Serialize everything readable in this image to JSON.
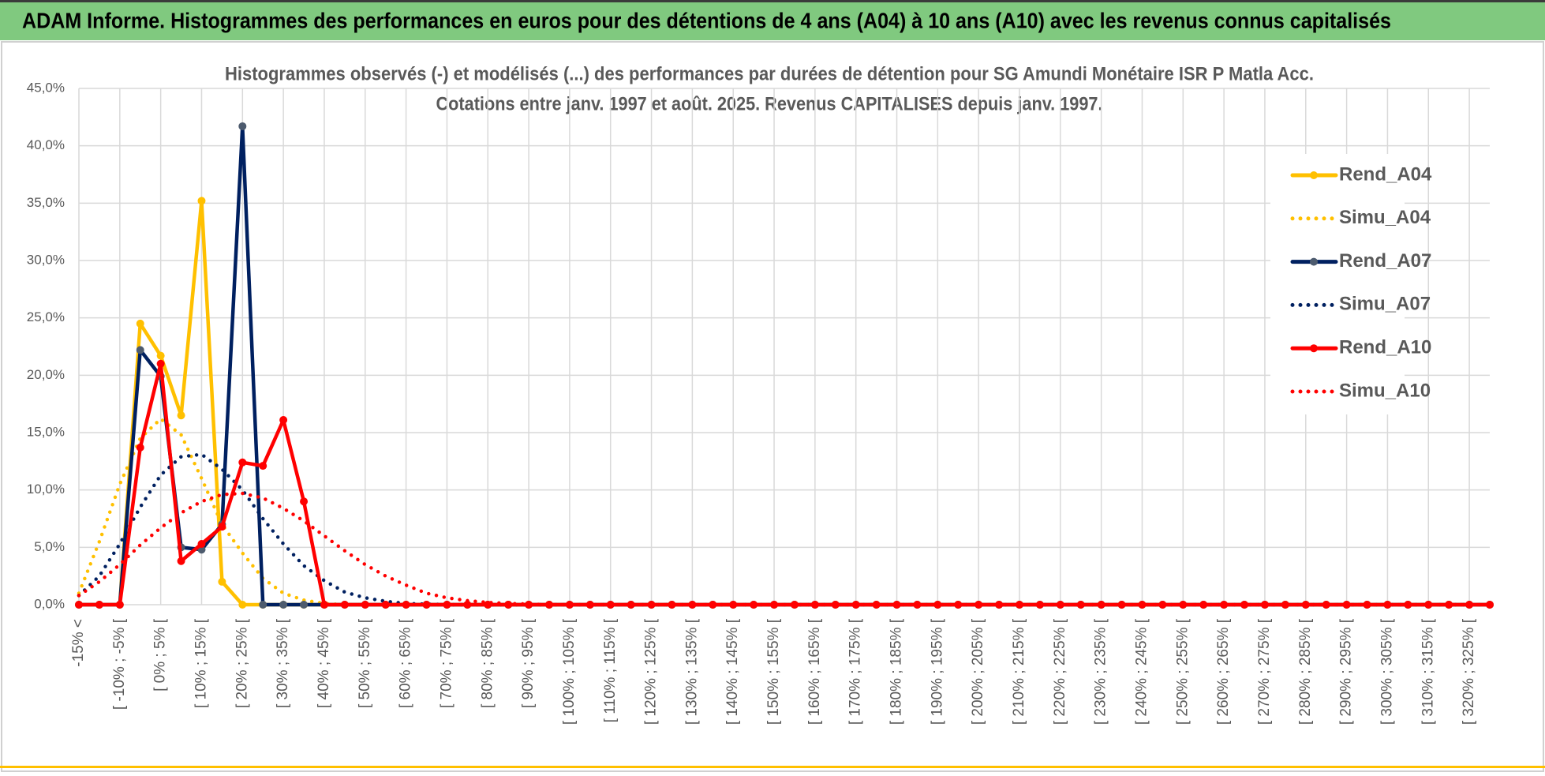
{
  "header": {
    "title": "ADAM Informe. Histogrammes des performances en euros pour des détentions de 4 ans (A04) à 10 ans (A10) avec les revenus connus capitalisés"
  },
  "chart_data": {
    "type": "line",
    "title": "Histogrammes observés (-) et modélisés (...) des performances par durées de détention pour SG Amundi Monétaire ISR P Matla Acc.",
    "subtitle": "Cotations entre janv. 1997 et août. 2025. Revenus CAPITALISES depuis janv. 1997.",
    "categories": [
      "-15% <",
      null,
      "[ -10% ; -5% [",
      null,
      "[ 0% ; 5% [",
      null,
      "[ 10% ; 15% [",
      null,
      "[ 20% ; 25% [",
      null,
      "[ 30% ; 35% [",
      null,
      "[ 40% ; 45% [",
      null,
      "[ 50% ; 55% [",
      null,
      "[ 60% ; 65% [",
      null,
      "[ 70% ; 75% [",
      null,
      "[ 80% ; 85% [",
      null,
      "[ 90% ; 95% [",
      null,
      "[ 100% ; 105% [",
      null,
      "[ 110% ; 115% [",
      null,
      "[ 120% ; 125% [",
      null,
      "[ 130% ; 135% [",
      null,
      "[ 140% ; 145% [",
      null,
      "[ 150% ; 155% [",
      null,
      "[ 160% ; 165% [",
      null,
      "[ 170% ; 175% [",
      null,
      "[ 180% ; 185% [",
      null,
      "[ 190% ; 195% [",
      null,
      "[ 200% ; 205% [",
      null,
      "[ 210% ; 215% [",
      null,
      "[ 220% ; 225% [",
      null,
      "[ 230% ; 235% [",
      null,
      "[ 240% ; 245% [",
      null,
      "[ 250% ; 255% [",
      null,
      "[ 260% ; 265% [",
      null,
      "[ 270% ; 275% [",
      null,
      "[ 280% ; 285% [",
      null,
      "[ 290% ; 295% [",
      null,
      "[ 300% ; 305% [",
      null,
      "[ 310% ; 315% [",
      null,
      "[ 320% ; 325% [",
      null
    ],
    "series": [
      {
        "name": "Rend_A04",
        "color": "#ffc000",
        "marker_color": "#ffc000",
        "line_style": "solid",
        "markers": true,
        "values": [
          0,
          0,
          0,
          24.5,
          21.7,
          16.5,
          35.2,
          2.0,
          0,
          0,
          0,
          0,
          0,
          0,
          0,
          0,
          0,
          0,
          0,
          0,
          0,
          0,
          0,
          0,
          0,
          0,
          0,
          0,
          0,
          0,
          0,
          0,
          0,
          0,
          0,
          0,
          0,
          0,
          0,
          0,
          0,
          0,
          0,
          0,
          0,
          0,
          0,
          0,
          0,
          0,
          0,
          0,
          0,
          0,
          0,
          0,
          0,
          0,
          0,
          0,
          0,
          0,
          0,
          0,
          0,
          0,
          0,
          0,
          0,
          0
        ]
      },
      {
        "name": "Simu_A04",
        "color": "#ffc000",
        "line_style": "dotted",
        "markers": false,
        "values": [
          1.0,
          5.5,
          10.5,
          14.5,
          16.2,
          14.8,
          11.0,
          7.0,
          4.5,
          2.3,
          1.0,
          0.4,
          0.1,
          0,
          0,
          0,
          0,
          0,
          0,
          0,
          0,
          0,
          0,
          0,
          0,
          0,
          0,
          0,
          0,
          0,
          0,
          0,
          0,
          0,
          0,
          0,
          0,
          0,
          0,
          0,
          0,
          0,
          0,
          0,
          0,
          0,
          0,
          0,
          0,
          0,
          0,
          0,
          0,
          0,
          0,
          0,
          0,
          0,
          0,
          0,
          0,
          0,
          0,
          0,
          0,
          0,
          0,
          0,
          0,
          0
        ]
      },
      {
        "name": "Rend_A07",
        "color": "#002060",
        "marker_color": "#4d5b6e",
        "line_style": "solid",
        "markers": true,
        "values": [
          0,
          0,
          0,
          22.2,
          19.9,
          5.0,
          4.8,
          7.0,
          41.7,
          0,
          0,
          0,
          0,
          0,
          0,
          0,
          0,
          0,
          0,
          0,
          0,
          0,
          0,
          0,
          0,
          0,
          0,
          0,
          0,
          0,
          0,
          0,
          0,
          0,
          0,
          0,
          0,
          0,
          0,
          0,
          0,
          0,
          0,
          0,
          0,
          0,
          0,
          0,
          0,
          0,
          0,
          0,
          0,
          0,
          0,
          0,
          0,
          0,
          0,
          0,
          0,
          0,
          0,
          0,
          0,
          0,
          0,
          0,
          0,
          0
        ]
      },
      {
        "name": "Simu_A07",
        "color": "#002060",
        "line_style": "dotted",
        "markers": false,
        "values": [
          0.8,
          2.5,
          5.3,
          8.5,
          11.3,
          12.9,
          13.1,
          11.8,
          10.0,
          7.5,
          5.3,
          3.4,
          2.1,
          1.1,
          0.6,
          0.3,
          0.1,
          0.05,
          0,
          0,
          0,
          0,
          0,
          0,
          0,
          0,
          0,
          0,
          0,
          0,
          0,
          0,
          0,
          0,
          0,
          0,
          0,
          0,
          0,
          0,
          0,
          0,
          0,
          0,
          0,
          0,
          0,
          0,
          0,
          0,
          0,
          0,
          0,
          0,
          0,
          0,
          0,
          0,
          0,
          0,
          0,
          0,
          0,
          0,
          0,
          0,
          0,
          0,
          0,
          0
        ]
      },
      {
        "name": "Rend_A10",
        "color": "#ff0000",
        "marker_color": "#ff0000",
        "line_style": "solid",
        "markers": true,
        "values": [
          0,
          0,
          0,
          13.7,
          21.0,
          3.8,
          5.3,
          6.8,
          12.4,
          12.1,
          16.1,
          9.0,
          0,
          0,
          0,
          0,
          0,
          0,
          0,
          0,
          0,
          0,
          0,
          0,
          0,
          0,
          0,
          0,
          0,
          0,
          0,
          0,
          0,
          0,
          0,
          0,
          0,
          0,
          0,
          0,
          0,
          0,
          0,
          0,
          0,
          0,
          0,
          0,
          0,
          0,
          0,
          0,
          0,
          0,
          0,
          0,
          0,
          0,
          0,
          0,
          0,
          0,
          0,
          0,
          0,
          0,
          0,
          0,
          0,
          0
        ]
      },
      {
        "name": "Simu_A10",
        "color": "#ff0000",
        "line_style": "dotted",
        "markers": false,
        "values": [
          0.8,
          2.0,
          3.5,
          5.2,
          6.7,
          8.0,
          9.0,
          9.6,
          9.7,
          9.3,
          8.4,
          7.3,
          6.0,
          4.7,
          3.5,
          2.5,
          1.7,
          1.0,
          0.6,
          0.35,
          0.2,
          0.1,
          0.05,
          0,
          0,
          0,
          0,
          0,
          0,
          0,
          0,
          0,
          0,
          0,
          0,
          0,
          0,
          0,
          0,
          0,
          0,
          0,
          0,
          0,
          0,
          0,
          0,
          0,
          0,
          0,
          0,
          0,
          0,
          0,
          0,
          0,
          0,
          0,
          0,
          0,
          0,
          0,
          0,
          0,
          0,
          0,
          0,
          0,
          0,
          0
        ]
      }
    ],
    "ylim": [
      0,
      45
    ],
    "yticks": [
      {
        "value": 0,
        "label": "0,0%"
      },
      {
        "value": 5,
        "label": "5,0%"
      },
      {
        "value": 10,
        "label": "10,0%"
      },
      {
        "value": 15,
        "label": "15,0%"
      },
      {
        "value": 20,
        "label": "20,0%"
      },
      {
        "value": 25,
        "label": "25,0%"
      },
      {
        "value": 30,
        "label": "30,0%"
      },
      {
        "value": 35,
        "label": "35,0%"
      },
      {
        "value": 40,
        "label": "40,0%"
      },
      {
        "value": 45,
        "label": "45,0%"
      }
    ],
    "grid": true,
    "legend": "right"
  }
}
